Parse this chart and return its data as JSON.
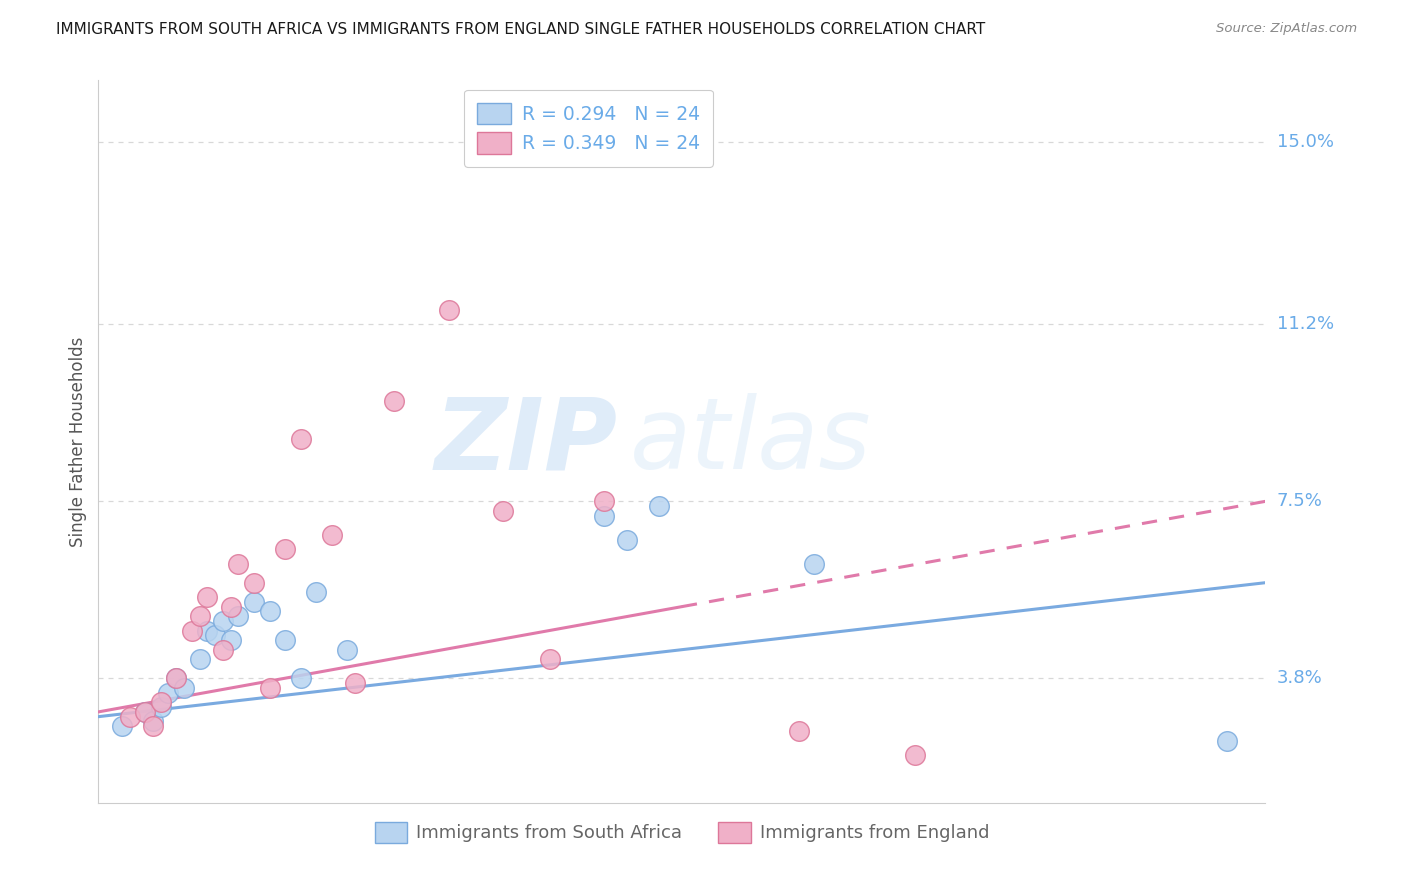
{
  "title": "IMMIGRANTS FROM SOUTH AFRICA VS IMMIGRANTS FROM ENGLAND SINGLE FATHER HOUSEHOLDS CORRELATION CHART",
  "source": "Source: ZipAtlas.com",
  "ylabel": "Single Father Households",
  "ytick_labels": [
    "15.0%",
    "11.2%",
    "7.5%",
    "3.8%"
  ],
  "ytick_values": [
    0.15,
    0.112,
    0.075,
    0.038
  ],
  "xlim": [
    0.0,
    0.15
  ],
  "ylim": [
    0.012,
    0.163
  ],
  "legend_label1": "Immigrants from South Africa",
  "legend_label2": "Immigrants from England",
  "R1": 0.294,
  "N1": 24,
  "R2": 0.349,
  "N2": 24,
  "color_sa": "#b8d4f0",
  "color_en": "#f0b0c8",
  "color_sa_edge": "#7aaadd",
  "color_en_edge": "#dd7799",
  "color_sa_line": "#7aaae0",
  "color_en_line": "#e07aaa",
  "color_ytick": "#6aabe8",
  "scatter_sa_x": [
    0.003,
    0.006,
    0.007,
    0.008,
    0.009,
    0.01,
    0.011,
    0.013,
    0.014,
    0.015,
    0.016,
    0.017,
    0.018,
    0.02,
    0.022,
    0.024,
    0.026,
    0.028,
    0.032,
    0.065,
    0.068,
    0.072,
    0.092,
    0.145
  ],
  "scatter_sa_y": [
    0.028,
    0.031,
    0.029,
    0.032,
    0.035,
    0.038,
    0.036,
    0.042,
    0.048,
    0.047,
    0.05,
    0.046,
    0.051,
    0.054,
    0.052,
    0.046,
    0.038,
    0.056,
    0.044,
    0.072,
    0.067,
    0.074,
    0.062,
    0.025
  ],
  "scatter_en_x": [
    0.004,
    0.006,
    0.007,
    0.008,
    0.01,
    0.012,
    0.013,
    0.014,
    0.016,
    0.017,
    0.018,
    0.02,
    0.022,
    0.024,
    0.026,
    0.03,
    0.033,
    0.038,
    0.045,
    0.052,
    0.058,
    0.065,
    0.09,
    0.105
  ],
  "scatter_en_y": [
    0.03,
    0.031,
    0.028,
    0.033,
    0.038,
    0.048,
    0.051,
    0.055,
    0.044,
    0.053,
    0.062,
    0.058,
    0.036,
    0.065,
    0.088,
    0.068,
    0.037,
    0.096,
    0.115,
    0.073,
    0.042,
    0.075,
    0.027,
    0.022
  ],
  "trend_sa_x0": 0.0,
  "trend_sa_x1": 0.15,
  "trend_sa_y0": 0.03,
  "trend_sa_y1": 0.058,
  "trend_en_x0": 0.0,
  "trend_en_x1": 0.15,
  "trend_en_y0": 0.031,
  "trend_en_y1": 0.075,
  "trend_en_break": 0.075,
  "watermark_zip": "ZIP",
  "watermark_atlas": "atlas",
  "background_color": "#ffffff",
  "grid_color": "#d8d8d8",
  "spine_color": "#cccccc",
  "title_color": "#1a1a1a",
  "source_color": "#888888",
  "ylabel_color": "#555555",
  "bottom_label_color": "#666666"
}
